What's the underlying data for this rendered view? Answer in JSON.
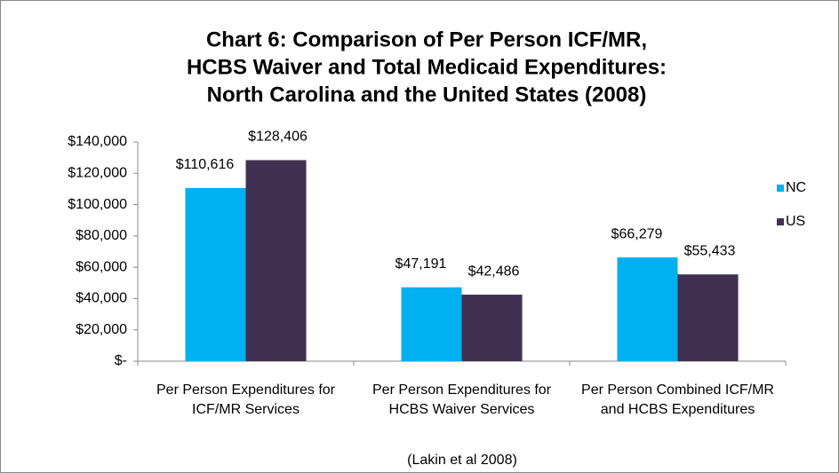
{
  "chart_data": {
    "type": "bar",
    "title": [
      "Chart 6:  Comparison of Per Person ICF/MR,",
      "HCBS Waiver and Total Medicaid Expenditures:",
      "North Carolina and the United States (2008)"
    ],
    "categories": [
      "Per Person Expenditures for ICF/MR Services",
      "Per Person Expenditures for HCBS Waiver Services",
      "Per Person Combined ICF/MR and HCBS Expenditures"
    ],
    "annotation": "(Lakin et al 2008)",
    "series": [
      {
        "name": "NC",
        "color": "#00b0f0",
        "values": [
          110616,
          47191,
          66279
        ],
        "value_labels": [
          "$110,616",
          "$47,191",
          "$66,279"
        ]
      },
      {
        "name": "US",
        "color": "#403152",
        "values": [
          128406,
          42486,
          55433
        ],
        "value_labels": [
          "$128,406",
          "$42,486",
          "$55,433"
        ]
      }
    ],
    "ylim": [
      0,
      140000
    ],
    "yticks": [
      {
        "value": 0,
        "label": "$-"
      },
      {
        "value": 20000,
        "label": "$20,000"
      },
      {
        "value": 40000,
        "label": "$40,000"
      },
      {
        "value": 60000,
        "label": "$60,000"
      },
      {
        "value": 80000,
        "label": "$80,000"
      },
      {
        "value": 100000,
        "label": "$100,000"
      },
      {
        "value": 120000,
        "label": "$120,000"
      },
      {
        "value": 140000,
        "label": "$140,000"
      }
    ],
    "legend": "right",
    "grid": false
  }
}
